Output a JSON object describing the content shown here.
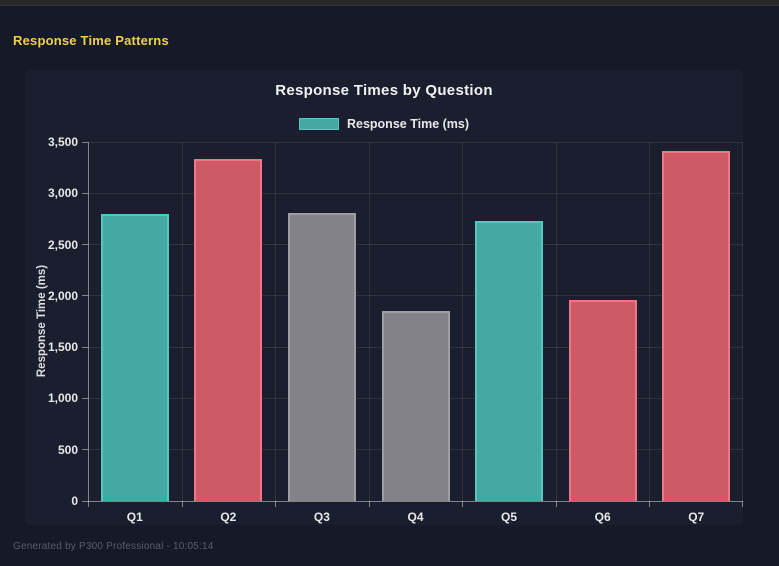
{
  "page": {
    "header": "Response Time Patterns",
    "footer": "Generated by P300 Professional - 10:05:14"
  },
  "colors": {
    "page_bg": "#161927",
    "card_bg": "#1b1e2f",
    "accent_yellow": "#f0d048",
    "teal": "#45a9a3",
    "teal_border": "#54c7bf",
    "red": "#cd5a64",
    "red_border": "#ef7782",
    "gray": "#828288",
    "gray_border": "#9d9da3"
  },
  "chart_data": {
    "type": "bar",
    "title": "Response Times by Question",
    "legend_label": "Response Time (ms)",
    "legend_position": "top",
    "categories": [
      "Q1",
      "Q2",
      "Q3",
      "Q4",
      "Q5",
      "Q6",
      "Q7"
    ],
    "values": [
      2800,
      3330,
      2810,
      1850,
      2730,
      1960,
      3410
    ],
    "bar_color_keys": [
      "teal",
      "red",
      "gray",
      "gray",
      "teal",
      "red",
      "red"
    ],
    "xlabel": "",
    "ylabel": "Response Time (ms)",
    "ylim": [
      0,
      3500
    ],
    "ytick_step": 500,
    "ytick_labels": [
      "0",
      "500",
      "1,000",
      "1,500",
      "2,000",
      "2,500",
      "3,000",
      "3,500"
    ],
    "grid": true
  }
}
